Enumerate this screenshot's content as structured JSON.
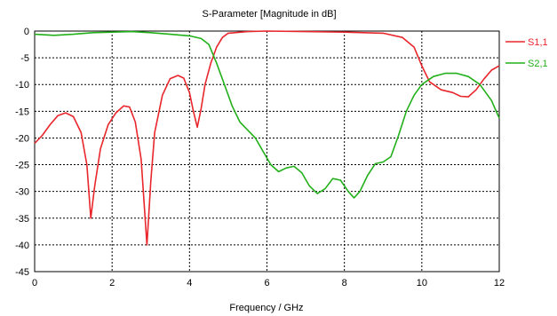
{
  "chart_data": {
    "type": "line",
    "title": "S-Parameter [Magnitude in dB]",
    "xlabel": "Frequency / GHz",
    "ylabel": "",
    "xlim": [
      0,
      12
    ],
    "ylim": [
      -45,
      0
    ],
    "x_ticks": [
      0,
      2,
      4,
      6,
      8,
      10,
      12
    ],
    "y_ticks": [
      0,
      -5,
      -10,
      -15,
      -20,
      -25,
      -30,
      -35,
      -40,
      -45
    ],
    "grid": true,
    "legend_position": "right",
    "series": [
      {
        "name": "S1,1",
        "color": "#e8262b",
        "points": [
          [
            0,
            -21
          ],
          [
            0.2,
            -19.5
          ],
          [
            0.4,
            -17.5
          ],
          [
            0.6,
            -15.8
          ],
          [
            0.8,
            -15.3
          ],
          [
            1.0,
            -16
          ],
          [
            1.2,
            -19
          ],
          [
            1.35,
            -25
          ],
          [
            1.45,
            -35
          ],
          [
            1.55,
            -29
          ],
          [
            1.7,
            -22
          ],
          [
            1.9,
            -17.5
          ],
          [
            2.1,
            -15.3
          ],
          [
            2.3,
            -14
          ],
          [
            2.45,
            -14.2
          ],
          [
            2.6,
            -17
          ],
          [
            2.75,
            -24
          ],
          [
            2.9,
            -40
          ],
          [
            3.0,
            -28
          ],
          [
            3.1,
            -19
          ],
          [
            3.3,
            -12
          ],
          [
            3.5,
            -8.9
          ],
          [
            3.7,
            -8.3
          ],
          [
            3.85,
            -8.8
          ],
          [
            4.0,
            -11.5
          ],
          [
            4.1,
            -15
          ],
          [
            4.2,
            -18
          ],
          [
            4.3,
            -14.5
          ],
          [
            4.4,
            -10
          ],
          [
            4.55,
            -6
          ],
          [
            4.7,
            -3
          ],
          [
            4.85,
            -1.2
          ],
          [
            5.0,
            -0.4
          ],
          [
            5.5,
            -0.1
          ],
          [
            6.0,
            0
          ],
          [
            7.0,
            -0.1
          ],
          [
            8.0,
            -0.2
          ],
          [
            9.0,
            -0.4
          ],
          [
            9.5,
            -1.2
          ],
          [
            9.8,
            -3
          ],
          [
            10.0,
            -6.5
          ],
          [
            10.2,
            -9.5
          ],
          [
            10.5,
            -11
          ],
          [
            10.8,
            -11.5
          ],
          [
            11.0,
            -12.2
          ],
          [
            11.2,
            -12.3
          ],
          [
            11.4,
            -11
          ],
          [
            11.6,
            -9
          ],
          [
            11.8,
            -7.3
          ],
          [
            12.0,
            -6.5
          ]
        ]
      },
      {
        "name": "S2,1",
        "color": "#22b01a",
        "points": [
          [
            0,
            -0.6
          ],
          [
            0.5,
            -0.8
          ],
          [
            1.0,
            -0.6
          ],
          [
            1.5,
            -0.3
          ],
          [
            2.0,
            -0.2
          ],
          [
            2.5,
            -0.1
          ],
          [
            3.0,
            -0.3
          ],
          [
            3.5,
            -0.6
          ],
          [
            4.0,
            -0.9
          ],
          [
            4.3,
            -1.4
          ],
          [
            4.5,
            -2.5
          ],
          [
            4.7,
            -6
          ],
          [
            4.9,
            -10
          ],
          [
            5.1,
            -14
          ],
          [
            5.3,
            -17
          ],
          [
            5.5,
            -18.5
          ],
          [
            5.7,
            -20
          ],
          [
            5.9,
            -22.5
          ],
          [
            6.1,
            -25
          ],
          [
            6.3,
            -26.3
          ],
          [
            6.5,
            -25.6
          ],
          [
            6.7,
            -25.3
          ],
          [
            6.9,
            -26.5
          ],
          [
            7.1,
            -29
          ],
          [
            7.3,
            -30.4
          ],
          [
            7.5,
            -29.5
          ],
          [
            7.7,
            -27.6
          ],
          [
            7.9,
            -27.9
          ],
          [
            8.1,
            -30
          ],
          [
            8.25,
            -31.2
          ],
          [
            8.4,
            -30
          ],
          [
            8.6,
            -27
          ],
          [
            8.8,
            -24.8
          ],
          [
            9.0,
            -24.5
          ],
          [
            9.2,
            -23.5
          ],
          [
            9.4,
            -19.5
          ],
          [
            9.6,
            -15
          ],
          [
            9.8,
            -12
          ],
          [
            10.0,
            -10
          ],
          [
            10.3,
            -8.5
          ],
          [
            10.6,
            -7.9
          ],
          [
            10.9,
            -7.9
          ],
          [
            11.2,
            -8.5
          ],
          [
            11.5,
            -10
          ],
          [
            11.8,
            -13
          ],
          [
            12.0,
            -16.3
          ]
        ]
      }
    ]
  }
}
